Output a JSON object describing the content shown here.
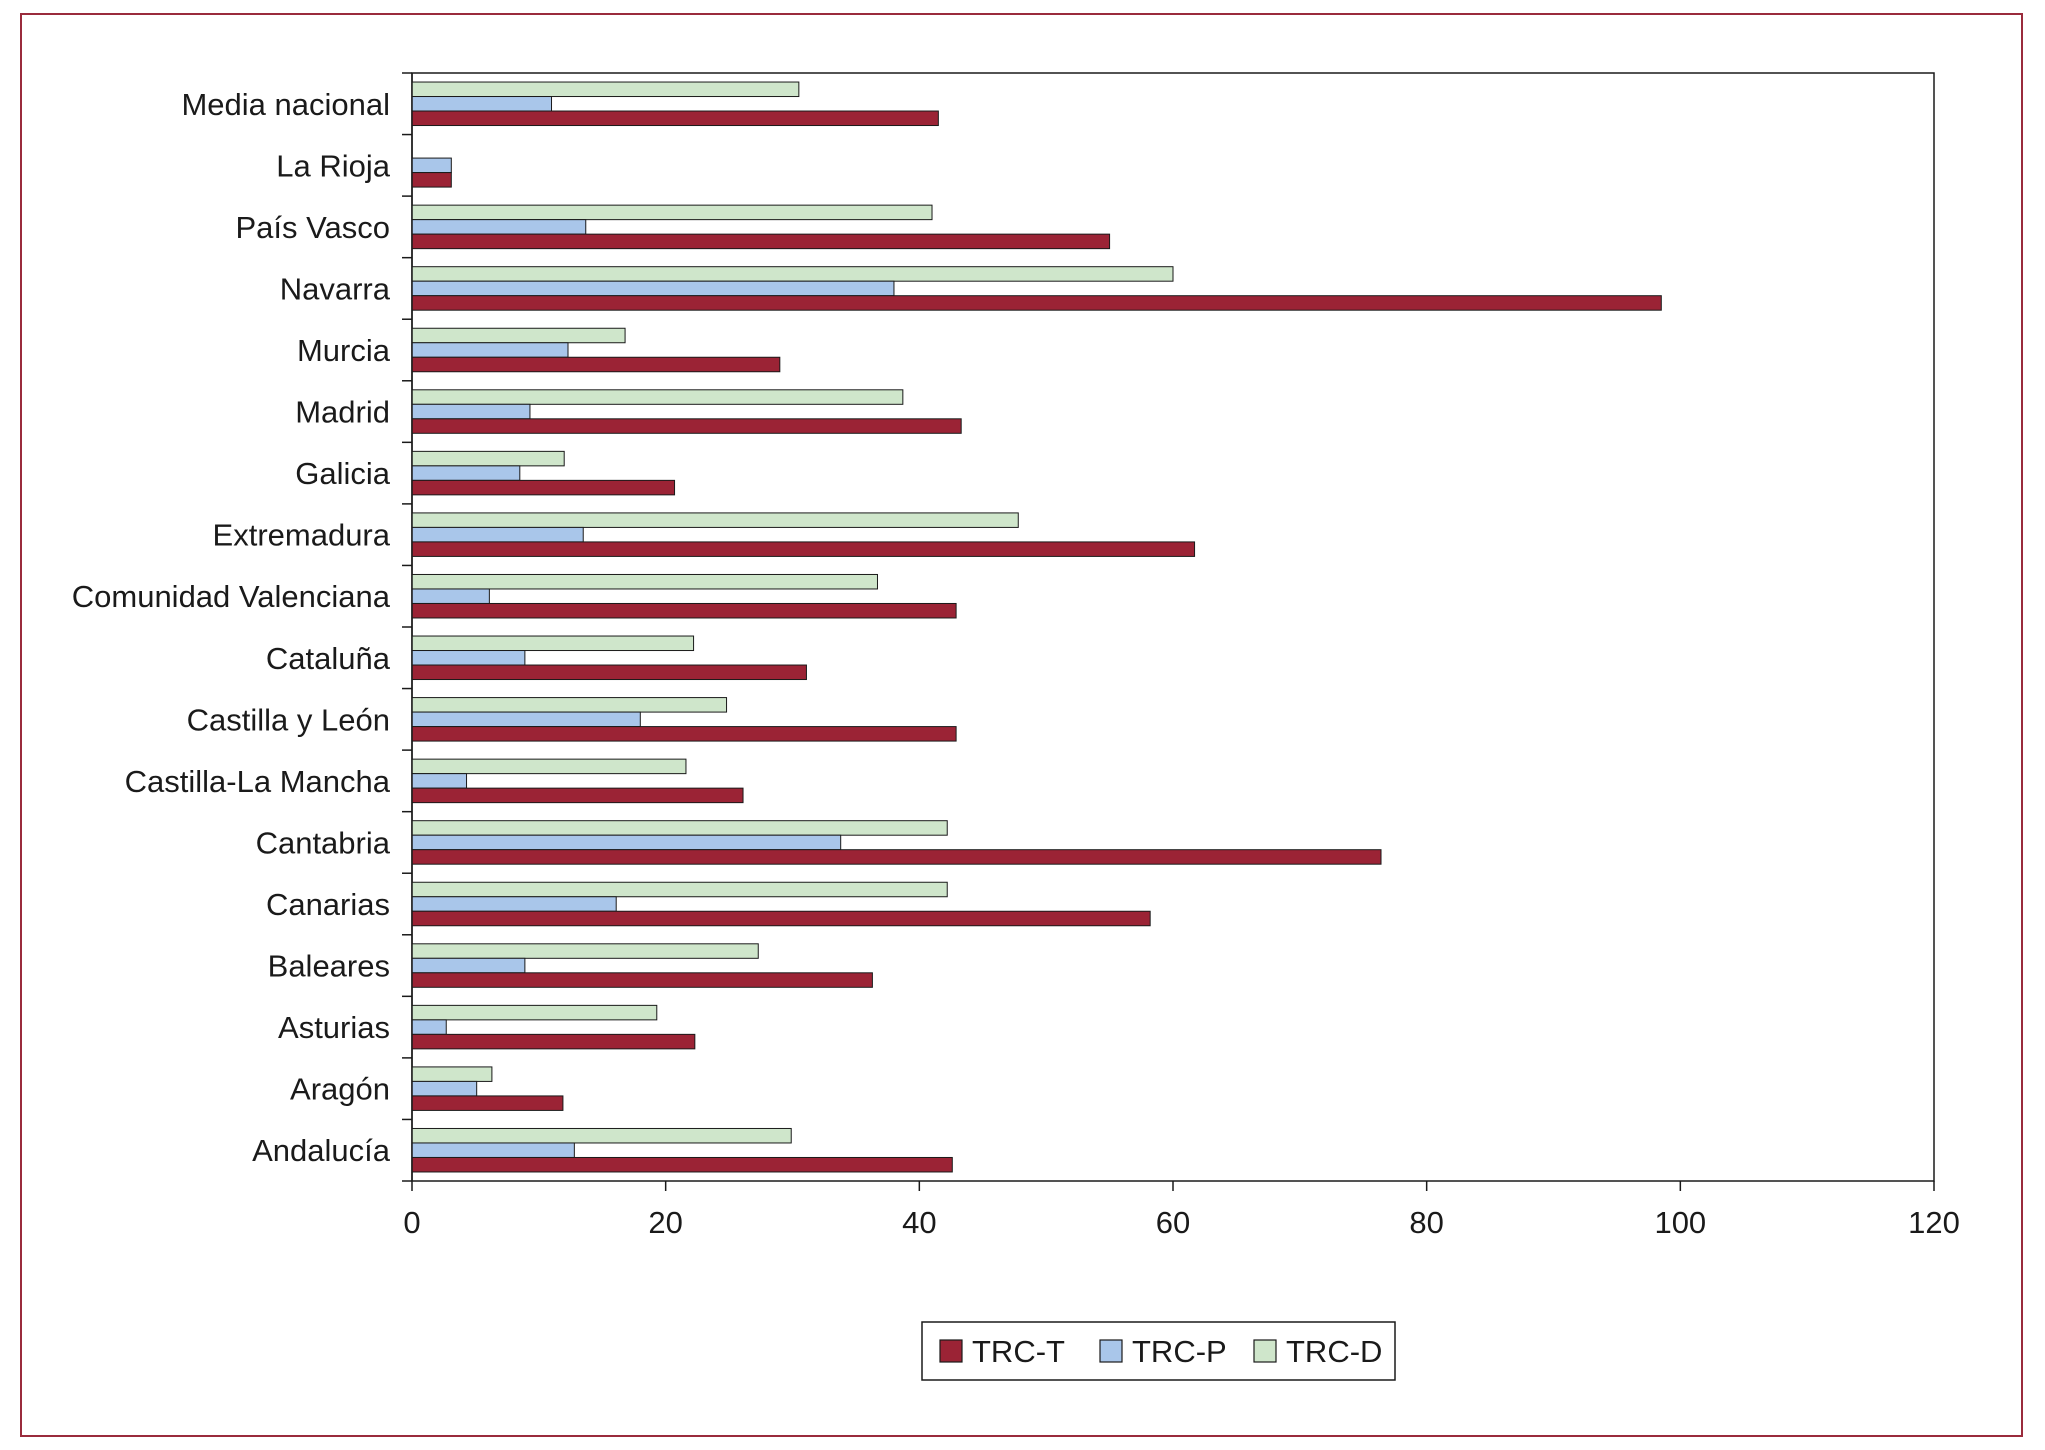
{
  "chart_data": {
    "type": "bar",
    "orientation": "horizontal",
    "categories": [
      "Media nacional",
      "La Rioja",
      "País Vasco",
      "Navarra",
      "Murcia",
      "Madrid",
      "Galicia",
      "Extremadura",
      "Comunidad Valenciana",
      "Cataluña",
      "Castilla y León",
      "Castilla-La Mancha",
      "Cantabria",
      "Canarias",
      "Baleares",
      "Asturias",
      "Aragón",
      "Andalucía"
    ],
    "series": [
      {
        "name": "TRC-D",
        "color": "#cfe6cb",
        "values": [
          30.5,
          0,
          41,
          60,
          16.8,
          38.7,
          12,
          47.8,
          36.7,
          22.2,
          24.8,
          21.6,
          42.2,
          42.2,
          27.3,
          19.3,
          6.3,
          29.9
        ]
      },
      {
        "name": "TRC-P",
        "color": "#a9c6ea",
        "values": [
          11,
          3.1,
          13.7,
          38,
          12.3,
          9.3,
          8.5,
          13.5,
          6.1,
          8.9,
          18,
          4.3,
          33.8,
          16.1,
          8.9,
          2.7,
          5.1,
          12.8
        ]
      },
      {
        "name": "TRC-T",
        "color": "#9b2335",
        "values": [
          41.5,
          3.1,
          55,
          98.5,
          29,
          43.3,
          20.7,
          61.7,
          42.9,
          31.1,
          42.9,
          26.1,
          76.4,
          58.2,
          36.3,
          22.3,
          11.9,
          42.6
        ]
      }
    ],
    "xlim": [
      0,
      120
    ],
    "xticks": [
      0,
      20,
      40,
      60,
      80,
      100,
      120
    ],
    "xticks_labels": [
      "0",
      "20",
      "40",
      "60",
      "80",
      "100",
      "120"
    ],
    "legend": {
      "position": "bottom-center",
      "order": [
        "TRC-T",
        "TRC-P",
        "TRC-D"
      ]
    },
    "grid": false,
    "title": "",
    "xlabel": "",
    "ylabel": ""
  },
  "colors": {
    "frame": "#9a2b3c",
    "axis": "#1a1a1a",
    "bar_stroke": "#1a1a1a"
  }
}
